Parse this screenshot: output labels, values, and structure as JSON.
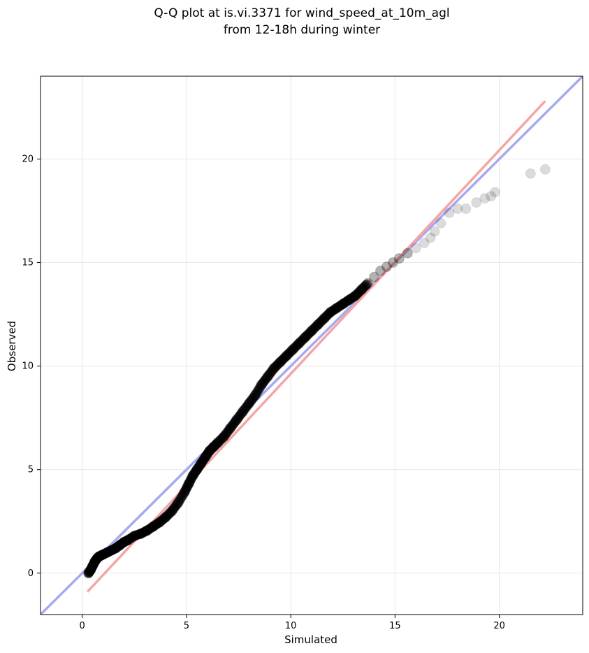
{
  "chart_data": {
    "type": "scatter",
    "title": [
      "Q-Q plot at is.vi.3371 for wind_speed_at_10m_agl",
      "from 12-18h during winter"
    ],
    "xlabel": "Simulated",
    "ylabel": "Observed",
    "xlim": [
      -2,
      24
    ],
    "ylim": [
      -2,
      24
    ],
    "xticks": [
      0,
      5,
      10,
      15,
      20
    ],
    "yticks": [
      0,
      5,
      10,
      15,
      20
    ],
    "grid": true,
    "series": [
      {
        "kind": "points",
        "color": "#000000",
        "x": [
          0.3,
          0.4,
          0.5,
          0.6,
          0.7,
          0.8,
          0.9,
          1.0,
          1.2,
          1.4,
          1.6,
          1.8,
          2.0,
          2.2,
          2.5,
          2.8,
          3.1,
          3.4,
          3.7,
          4.0,
          4.3,
          4.6,
          4.9,
          5.1,
          5.3,
          5.5,
          5.7,
          5.9,
          6.1,
          6.3,
          6.5,
          6.8,
          7.1,
          7.4,
          7.7,
          8.0,
          8.3,
          8.6,
          8.9,
          9.2,
          9.5,
          9.8,
          10.1,
          10.4,
          10.7,
          11.0,
          11.3,
          11.6,
          11.9,
          12.2,
          12.5,
          12.8,
          13.1,
          13.4,
          13.7,
          14.0,
          14.3,
          14.6,
          14.9,
          15.2,
          15.6,
          16.0,
          16.4,
          16.7,
          16.9,
          17.2,
          17.6,
          18.0,
          18.4,
          18.9,
          19.3,
          19.6,
          19.8,
          21.5,
          22.2
        ],
        "y": [
          0.0,
          0.15,
          0.35,
          0.55,
          0.7,
          0.8,
          0.85,
          0.9,
          1.0,
          1.1,
          1.2,
          1.35,
          1.5,
          1.6,
          1.8,
          1.9,
          2.05,
          2.25,
          2.45,
          2.7,
          3.0,
          3.4,
          3.9,
          4.3,
          4.7,
          5.0,
          5.3,
          5.6,
          5.9,
          6.1,
          6.3,
          6.6,
          7.0,
          7.4,
          7.8,
          8.2,
          8.6,
          9.1,
          9.5,
          9.9,
          10.2,
          10.5,
          10.8,
          11.1,
          11.4,
          11.7,
          12.0,
          12.3,
          12.6,
          12.8,
          13.0,
          13.2,
          13.4,
          13.7,
          14.0,
          14.3,
          14.6,
          14.8,
          15.0,
          15.2,
          15.45,
          15.7,
          15.95,
          16.2,
          16.5,
          16.9,
          17.4,
          17.6,
          17.6,
          17.9,
          18.1,
          18.2,
          18.4,
          19.3,
          19.5
        ]
      },
      {
        "kind": "line",
        "color": "#a6aaf0",
        "x": [
          -2,
          24
        ],
        "y": [
          -2,
          24
        ]
      },
      {
        "kind": "line",
        "color": "#f5a5a5",
        "x": [
          0.25,
          22.2
        ],
        "y": [
          -0.9,
          22.8
        ]
      }
    ]
  }
}
